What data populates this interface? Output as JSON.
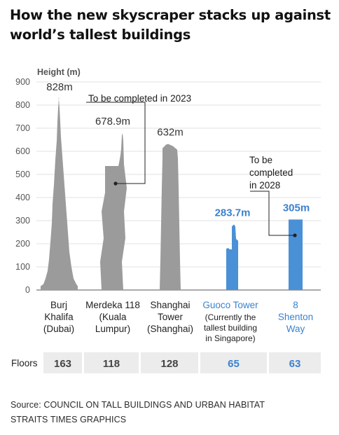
{
  "title": "How the new skyscraper stacks up against world’s tallest buildings",
  "source_line1": "Source: COUNCIL ON TALL BUILDINGS AND URBAN HABITAT",
  "source_line2": "STRAITS TIMES GRAPHICS",
  "colors": {
    "grey": "#9b9b9b",
    "blue": "#4a90d6",
    "blue_text": "#3b82d0",
    "floor_bg": "#ececec",
    "grid": "#d9d9d9"
  },
  "chart_data": {
    "type": "bar",
    "ylabel": "Height (m)",
    "ylim": [
      0,
      900
    ],
    "yticks": [
      "0",
      "100",
      "200",
      "300",
      "400",
      "500",
      "600",
      "700",
      "800",
      "900"
    ],
    "grid": true,
    "categories": [
      {
        "lines": [
          "Burj",
          "Khalifa",
          "(Dubai)"
        ],
        "highlight": false
      },
      {
        "lines": [
          "Merdeka 118",
          "(Kuala",
          "Lumpur)"
        ],
        "highlight": false
      },
      {
        "lines": [
          "Shanghai",
          "Tower",
          "(Shanghai)"
        ],
        "highlight": false
      },
      {
        "lines": [
          "Guoco Tower"
        ],
        "sublines": [
          "(Currently the",
          "tallest building",
          "in Singapore)"
        ],
        "highlight": true
      },
      {
        "lines": [
          "8",
          "Shenton",
          "Way"
        ],
        "highlight": true
      }
    ],
    "values": [
      828,
      678.9,
      632,
      283.7,
      305
    ],
    "value_labels": [
      "828m",
      "678.9m",
      "632m",
      "283.7m",
      "305m"
    ],
    "annotations": [
      {
        "text": [
          "To be completed in 2023"
        ],
        "target": 1
      },
      {
        "text": [
          "To be",
          "completed",
          "in 2028"
        ],
        "target": 4
      }
    ],
    "floors_label": "Floors",
    "floors": [
      "163",
      "118",
      "128",
      "65",
      "63"
    ]
  }
}
